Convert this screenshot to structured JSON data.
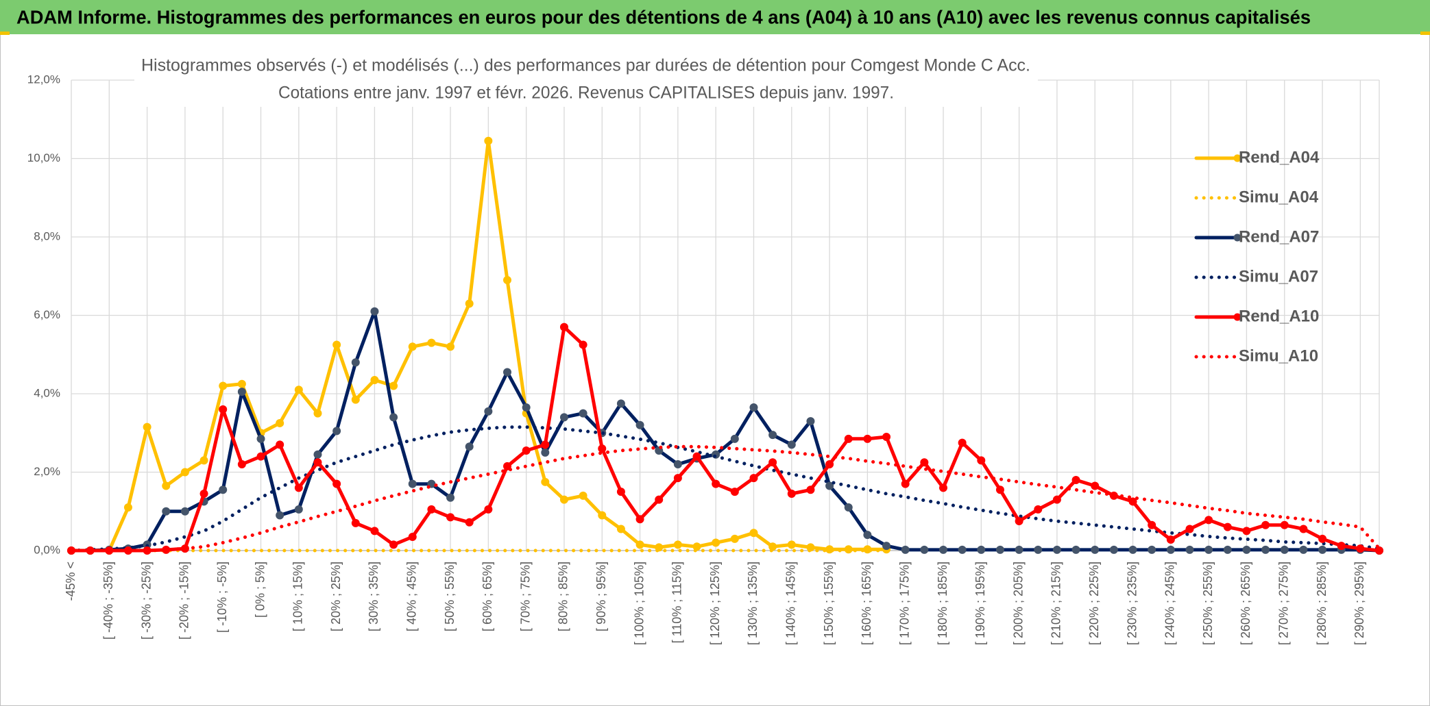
{
  "header": {
    "title": "ADAM Informe. Histogrammes des performances en euros pour des détentions de 4 ans (A04) à 10 ans (A10) avec les revenus connus capitalisés"
  },
  "chart_data": {
    "type": "line",
    "title": [
      "Histogrammes observés (-) et modélisés (...) des performances par durées de détention pour Comgest Monde C Acc.",
      "Cotations entre janv. 1997 et févr. 2026. Revenus CAPITALISES depuis janv. 1997."
    ],
    "categories": [
      "-45% <",
      null,
      "[ -40% ; -35%]",
      null,
      "[ -30% ; -25%]",
      null,
      "[ -20% ; -15%]",
      null,
      "[ -10% ; -5%]",
      null,
      "[ 0% ; 5%]",
      null,
      "[ 10% ; 15%]",
      null,
      "[ 20% ; 25%]",
      null,
      "[ 30% ; 35%]",
      null,
      "[ 40% ; 45%]",
      null,
      "[ 50% ; 55%]",
      null,
      "[ 60% ; 65%]",
      null,
      "[ 70% ; 75%]",
      null,
      "[ 80% ; 85%]",
      null,
      "[ 90% ; 95%]",
      null,
      "[ 100% ; 105%]",
      null,
      "[ 110% ; 115%]",
      null,
      "[ 120% ; 125%]",
      null,
      "[ 130% ; 135%]",
      null,
      "[ 140% ; 145%]",
      null,
      "[ 150% ; 155%]",
      null,
      "[ 160% ; 165%]",
      null,
      "[ 170% ; 175%]",
      null,
      "[ 180% ; 185%]",
      null,
      "[ 190% ; 195%]",
      null,
      "[ 200% ; 205%]",
      null,
      "[ 210% ; 215%]",
      null,
      "[ 220% ; 225%]",
      null,
      "[ 230% ; 235%]",
      null,
      "[ 240% ; 245%]",
      null,
      "[ 250% ; 255%]",
      null,
      "[ 260% ; 265%]",
      null,
      "[ 270% ; 275%]",
      null,
      "[ 280% ; 285%]",
      null,
      "[ 290% ; 295%]",
      null
    ],
    "series": [
      {
        "name": "Rend_A04",
        "color": "#FFC000",
        "style": "solid",
        "marker": true,
        "marker_color": "#FFC000",
        "values": [
          0,
          0,
          0,
          1.1,
          3.15,
          1.65,
          2.0,
          2.3,
          4.2,
          4.25,
          3.0,
          3.25,
          4.1,
          3.5,
          5.25,
          3.85,
          4.35,
          4.2,
          5.2,
          5.3,
          5.2,
          6.3,
          10.45,
          6.9,
          3.5,
          1.75,
          1.3,
          1.4,
          0.9,
          0.55,
          0.15,
          0.08,
          0.15,
          0.1,
          0.2,
          0.3,
          0.45,
          0.1,
          0.15,
          0.08,
          0.03,
          0.03,
          0.03,
          0.03,
          null,
          null,
          null,
          null,
          null,
          null,
          null,
          null,
          null,
          null,
          null,
          null,
          null,
          null,
          null,
          null,
          null,
          null,
          null,
          null,
          null,
          null,
          null,
          null,
          null,
          null
        ]
      },
      {
        "name": "Simu_A04",
        "color": "#FFC000",
        "style": "dotted",
        "marker": false,
        "values": [
          0,
          0,
          0,
          0,
          0,
          0,
          0,
          0,
          0,
          0,
          0,
          0,
          0,
          0,
          0,
          0,
          0,
          0,
          0,
          0,
          0,
          0,
          0,
          0,
          0,
          0,
          0,
          0,
          0,
          0,
          0,
          0,
          0,
          0,
          0,
          0,
          0,
          0,
          0,
          0,
          0,
          0,
          0,
          0,
          null,
          null,
          null,
          null,
          null,
          null,
          null,
          null,
          null,
          null,
          null,
          null,
          null,
          null,
          null,
          null,
          null,
          null,
          null,
          null,
          null,
          null,
          null,
          null,
          null,
          null
        ]
      },
      {
        "name": "Rend_A07",
        "color": "#002060",
        "style": "solid",
        "marker": true,
        "marker_color": "#44546A",
        "values": [
          0,
          0,
          0.02,
          0.05,
          0.15,
          1.0,
          1.0,
          1.25,
          1.55,
          4.05,
          2.85,
          0.9,
          1.05,
          2.45,
          3.05,
          4.8,
          6.1,
          3.4,
          1.7,
          1.7,
          1.35,
          2.65,
          3.55,
          4.55,
          3.65,
          2.5,
          3.4,
          3.5,
          3.0,
          3.75,
          3.2,
          2.55,
          2.2,
          2.35,
          2.45,
          2.85,
          3.65,
          2.95,
          2.7,
          3.3,
          1.65,
          1.1,
          0.4,
          0.12,
          0.02,
          0.02,
          0.02,
          0.02,
          0.02,
          0.02,
          0.02,
          0.02,
          0.02,
          0.02,
          0.02,
          0.02,
          0.02,
          0.02,
          0.02,
          0.02,
          0.02,
          0.02,
          0.02,
          0.02,
          0.02,
          0.02,
          0.02,
          0.02,
          0.02,
          0
        ]
      },
      {
        "name": "Simu_A07",
        "color": "#002060",
        "style": "dotted",
        "marker": false,
        "values": [
          0,
          0.02,
          0.04,
          0.07,
          0.12,
          0.22,
          0.35,
          0.5,
          0.75,
          1.05,
          1.35,
          1.6,
          1.85,
          2.05,
          2.25,
          2.4,
          2.55,
          2.7,
          2.82,
          2.93,
          3.02,
          3.08,
          3.12,
          3.15,
          3.15,
          3.13,
          3.1,
          3.05,
          3.0,
          2.92,
          2.84,
          2.75,
          2.63,
          2.52,
          2.4,
          2.28,
          2.16,
          2.05,
          1.95,
          1.85,
          1.75,
          1.65,
          1.55,
          1.45,
          1.37,
          1.28,
          1.2,
          1.11,
          1.03,
          0.95,
          0.88,
          0.81,
          0.75,
          0.7,
          0.65,
          0.6,
          0.55,
          0.5,
          0.45,
          0.41,
          0.36,
          0.32,
          0.29,
          0.26,
          0.22,
          0.2,
          0.18,
          0.15,
          0.12,
          0.05
        ]
      },
      {
        "name": "Rend_A10",
        "color": "#FF0000",
        "style": "solid",
        "marker": true,
        "marker_color": "#FF0000",
        "values": [
          0,
          0,
          0,
          0,
          0,
          0.02,
          0.05,
          1.45,
          3.6,
          2.2,
          2.4,
          2.7,
          1.6,
          2.25,
          1.7,
          0.7,
          0.5,
          0.15,
          0.35,
          1.05,
          0.85,
          0.72,
          1.05,
          2.15,
          2.55,
          2.7,
          5.7,
          5.25,
          2.6,
          1.5,
          0.8,
          1.3,
          1.85,
          2.4,
          1.7,
          1.5,
          1.85,
          2.25,
          1.45,
          1.55,
          2.2,
          2.85,
          2.85,
          2.9,
          1.7,
          2.25,
          1.6,
          2.75,
          2.3,
          1.55,
          0.75,
          1.05,
          1.3,
          1.8,
          1.65,
          1.4,
          1.25,
          0.65,
          0.28,
          0.55,
          0.78,
          0.6,
          0.5,
          0.65,
          0.65,
          0.55,
          0.3,
          0.12,
          0.05,
          0
        ]
      },
      {
        "name": "Simu_A10",
        "color": "#FF0000",
        "style": "dotted",
        "marker": false,
        "values": [
          0,
          0,
          0,
          0,
          0,
          0.02,
          0.05,
          0.1,
          0.2,
          0.32,
          0.45,
          0.6,
          0.73,
          0.87,
          1.0,
          1.13,
          1.27,
          1.4,
          1.52,
          1.64,
          1.75,
          1.85,
          1.95,
          2.05,
          2.15,
          2.25,
          2.35,
          2.42,
          2.49,
          2.55,
          2.59,
          2.63,
          2.65,
          2.65,
          2.63,
          2.6,
          2.57,
          2.54,
          2.5,
          2.45,
          2.4,
          2.35,
          2.28,
          2.22,
          2.15,
          2.08,
          2.02,
          1.95,
          1.88,
          1.82,
          1.75,
          1.68,
          1.62,
          1.55,
          1.48,
          1.42,
          1.35,
          1.28,
          1.22,
          1.15,
          1.08,
          1.02,
          0.95,
          0.9,
          0.85,
          0.8,
          0.73,
          0.67,
          0.6,
          0.05
        ]
      }
    ],
    "ylim": [
      0,
      12
    ],
    "yticks": [
      {
        "value": 0,
        "label": "0,0%"
      },
      {
        "value": 2,
        "label": "2,0%"
      },
      {
        "value": 4,
        "label": "4,0%"
      },
      {
        "value": 6,
        "label": "6,0%"
      },
      {
        "value": 8,
        "label": "8,0%"
      },
      {
        "value": 10,
        "label": "10,0%"
      },
      {
        "value": 12,
        "label": "12,0%"
      }
    ],
    "grid": true,
    "legend": "right"
  }
}
